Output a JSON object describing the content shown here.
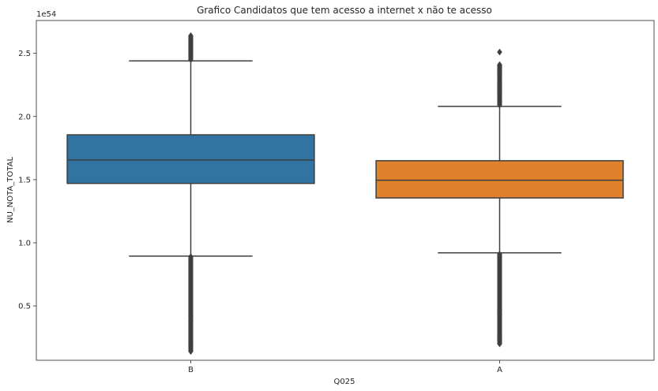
{
  "chart_data": {
    "type": "boxplot",
    "title": "Grafico Candidatos que tem acesso a internet x não te acesso",
    "xlabel": "Q025",
    "ylabel": "NU_NOTA_TOTAL",
    "y_offset_text": "1e54",
    "ylim": [
      0.07,
      2.76
    ],
    "yticks": [
      0.5,
      1.0,
      1.5,
      2.0,
      2.5
    ],
    "ytick_labels": [
      "0.5",
      "1.0",
      "1.5",
      "2.0",
      "2.5"
    ],
    "categories": [
      "B",
      "A"
    ],
    "series": [
      {
        "category": "B",
        "color": "#3274a1",
        "q1": 1.47,
        "median": 1.655,
        "q3": 1.855,
        "whisker_low": 0.895,
        "whisker_high": 2.44,
        "outliers_low": [
          0.89,
          0.85,
          0.8,
          0.75,
          0.7,
          0.65,
          0.6,
          0.55,
          0.5,
          0.45,
          0.42,
          0.38,
          0.34,
          0.3,
          0.26,
          0.22,
          0.19,
          0.14
        ],
        "outliers_high": [
          2.45,
          2.48,
          2.5,
          2.52,
          2.54,
          2.56,
          2.58,
          2.6,
          2.62,
          2.64
        ]
      },
      {
        "category": "A",
        "color": "#e1812c",
        "q1": 1.355,
        "median": 1.495,
        "q3": 1.65,
        "whisker_low": 0.92,
        "whisker_high": 2.08,
        "outliers_low": [
          0.91,
          0.87,
          0.82,
          0.77,
          0.72,
          0.67,
          0.62,
          0.57,
          0.52,
          0.47,
          0.43,
          0.39,
          0.35,
          0.31,
          0.27,
          0.23,
          0.2
        ],
        "outliers_high": [
          2.09,
          2.12,
          2.15,
          2.18,
          2.21,
          2.24,
          2.27,
          2.3,
          2.33,
          2.36,
          2.39,
          2.41,
          2.51
        ]
      }
    ]
  }
}
